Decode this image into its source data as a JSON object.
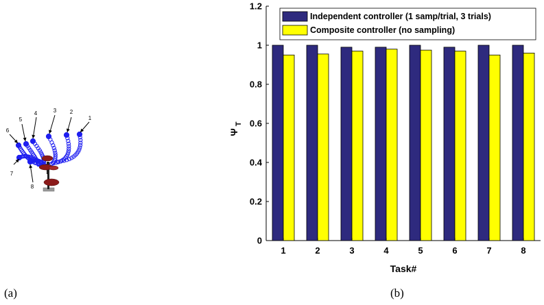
{
  "captions": {
    "a": "(a)",
    "b": "(b)"
  },
  "robot_figure": {
    "trajectory_labels": [
      "1",
      "2",
      "3",
      "4",
      "5",
      "6",
      "7",
      "8"
    ],
    "colors": {
      "trajectory": "#1f1ff0",
      "robot": "#8b1a1a",
      "base": "#9a9a9a"
    }
  },
  "chart_data": {
    "type": "bar",
    "categories": [
      "1",
      "2",
      "3",
      "4",
      "5",
      "6",
      "7",
      "8"
    ],
    "series": [
      {
        "name": "Independent controller (1 samp/trial, 3 trials)",
        "color": "#2e2a7e",
        "values": [
          1.0,
          1.0,
          0.99,
          0.99,
          1.0,
          0.99,
          1.0,
          1.0
        ]
      },
      {
        "name": "Composite controller (no sampling)",
        "color": "#ffff00",
        "values": [
          0.95,
          0.955,
          0.97,
          0.98,
          0.975,
          0.97,
          0.95,
          0.96
        ]
      }
    ],
    "xlabel": "Task#",
    "ylabel": "Ψ",
    "ylabel_subscript": "T",
    "ylim": [
      0,
      1.2
    ],
    "yticks": [
      "0",
      "0.2",
      "0.4",
      "0.6",
      "0.8",
      "1",
      "1.2"
    ],
    "grid": false,
    "legend_position": "top"
  }
}
